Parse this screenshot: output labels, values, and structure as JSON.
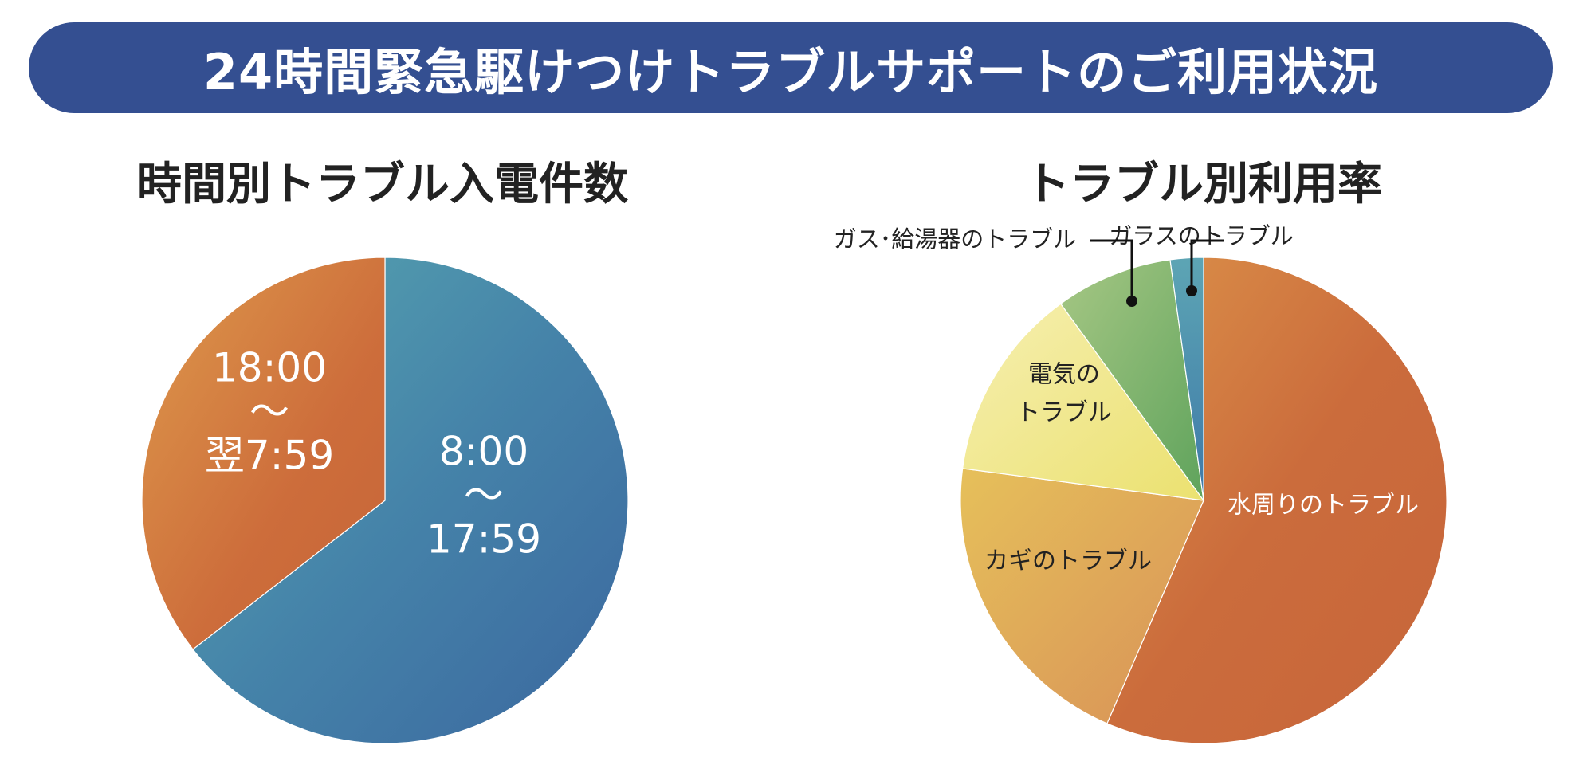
{
  "banner": {
    "title": "24時間緊急駆けつけトラブルサポートのご利用状況"
  },
  "chart_data": [
    {
      "type": "pie",
      "title": "時間別トラブル入電件数",
      "slices": [
        {
          "label_lines": [
            "8:00",
            "～",
            "17:59"
          ],
          "value": 64.5,
          "color": "#4a86a8"
        },
        {
          "label_lines": [
            "18:00",
            "～",
            "翌7:59"
          ],
          "value": 35.5,
          "color": "#d2793f"
        }
      ]
    },
    {
      "type": "pie",
      "title": "トラブル別利用率",
      "slices": [
        {
          "label_lines": [
            "水周りのトラブル"
          ],
          "value": 56.5,
          "color": "#cf7440"
        },
        {
          "label_lines": [
            "カギのトラブル"
          ],
          "value": 20.6,
          "color": "#dca25e"
        },
        {
          "label_lines": [
            "電気の",
            "トラブル"
          ],
          "value": 12.9,
          "color": "#eee683"
        },
        {
          "label_lines": [
            "ガス･給湯器のトラブル"
          ],
          "value": 7.8,
          "color": "#7eb06a"
        },
        {
          "label_lines": [
            "ガラスのトラブル"
          ],
          "value": 2.2,
          "color": "#4387ad"
        }
      ]
    }
  ]
}
